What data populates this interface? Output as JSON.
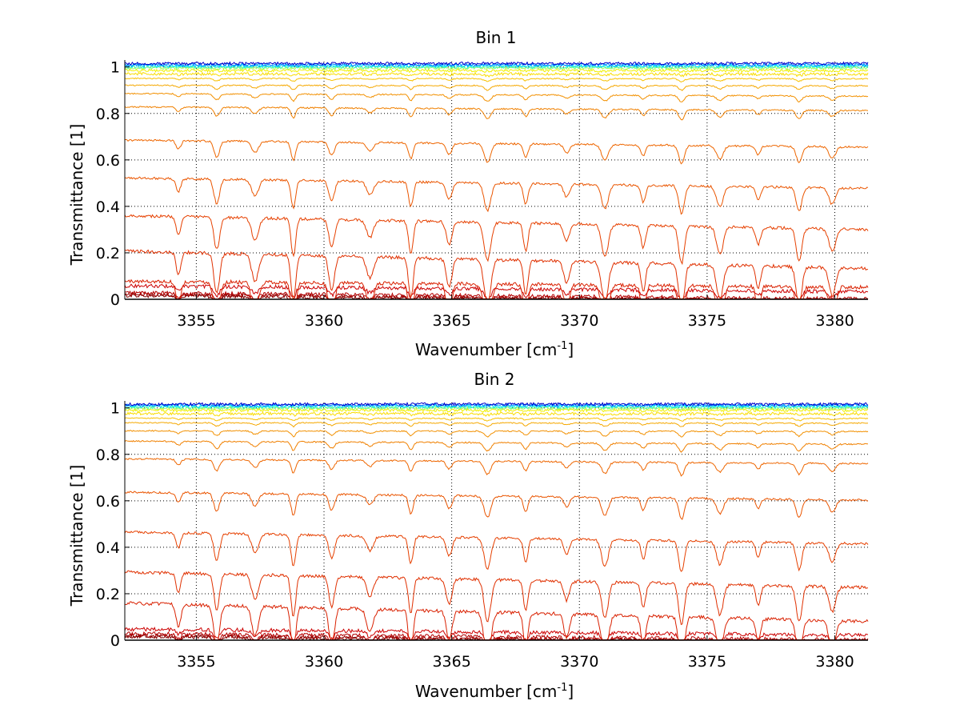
{
  "chart_data": [
    {
      "type": "line",
      "title": "Bin 1",
      "xlabel": "Wavenumber [cm",
      "xlabel_sup": "-1",
      "xlabel_end": "]",
      "ylabel": "Transmittance [1]",
      "xlim": [
        3352.2,
        3381.3
      ],
      "ylim": [
        0,
        1.03
      ],
      "grid": true,
      "x_ticks": [
        3355,
        3360,
        3365,
        3370,
        3375,
        3380
      ],
      "y_ticks": [
        0,
        0.2,
        0.4,
        0.6,
        0.8,
        1
      ],
      "y_tick_labels": [
        "0",
        "0.2",
        "0.4",
        "0.6",
        "0.8",
        "1"
      ],
      "absorption_lines": [
        3354.3,
        3355.8,
        3357.3,
        3358.8,
        3360.3,
        3361.8,
        3363.4,
        3364.9,
        3366.4,
        3367.9,
        3369.5,
        3371.0,
        3372.5,
        3374.0,
        3375.5,
        3377.0,
        3378.6,
        3379.9
      ],
      "series_baselines": [
        0.003,
        0.008,
        0.015,
        0.045,
        0.065,
        0.17,
        0.33,
        0.5,
        0.67,
        0.82,
        0.88,
        0.92,
        0.95,
        0.97,
        0.985,
        0.995,
        1.0,
        1.005,
        1.01,
        1.015
      ],
      "series_colors": [
        "#800000",
        "#990000",
        "#b30000",
        "#cc0000",
        "#d92000",
        "#e03000",
        "#e64000",
        "#ea5500",
        "#ee6600",
        "#f08000",
        "#f29000",
        "#f5a800",
        "#f7c000",
        "#fadc00",
        "#f0f000",
        "#a0ff60",
        "#40ffc0",
        "#00e0ff",
        "#0080ff",
        "#0000c8"
      ]
    },
    {
      "type": "line",
      "title": "Bin 2",
      "xlabel": "Wavenumber [cm",
      "xlabel_sup": "-1",
      "xlabel_end": "]",
      "ylabel": "Transmittance [1]",
      "xlim": [
        3352.2,
        3381.3
      ],
      "ylim": [
        0,
        1.03
      ],
      "grid": true,
      "x_ticks": [
        3355,
        3360,
        3365,
        3370,
        3375,
        3380
      ],
      "y_ticks": [
        0,
        0.2,
        0.4,
        0.6,
        0.8,
        1
      ],
      "y_tick_labels": [
        "0",
        "0.2",
        "0.4",
        "0.6",
        "0.8",
        "1"
      ],
      "absorption_lines": [
        3354.3,
        3355.8,
        3357.3,
        3358.8,
        3360.3,
        3361.8,
        3363.4,
        3364.9,
        3366.4,
        3367.9,
        3369.5,
        3371.0,
        3372.5,
        3374.0,
        3375.5,
        3377.0,
        3378.6,
        3379.9
      ],
      "series_baselines": [
        0.003,
        0.007,
        0.015,
        0.035,
        0.12,
        0.26,
        0.44,
        0.62,
        0.77,
        0.85,
        0.9,
        0.935,
        0.955,
        0.975,
        0.99,
        0.998,
        1.003,
        1.008,
        1.012,
        1.016
      ],
      "series_colors": [
        "#800000",
        "#990000",
        "#b30000",
        "#cc0000",
        "#d92000",
        "#e03000",
        "#e64000",
        "#ea5500",
        "#ee6600",
        "#f08000",
        "#f29000",
        "#f5a800",
        "#f7c000",
        "#fadc00",
        "#f0f000",
        "#a0ff60",
        "#40ffc0",
        "#00e0ff",
        "#0080ff",
        "#0000c8"
      ]
    }
  ]
}
